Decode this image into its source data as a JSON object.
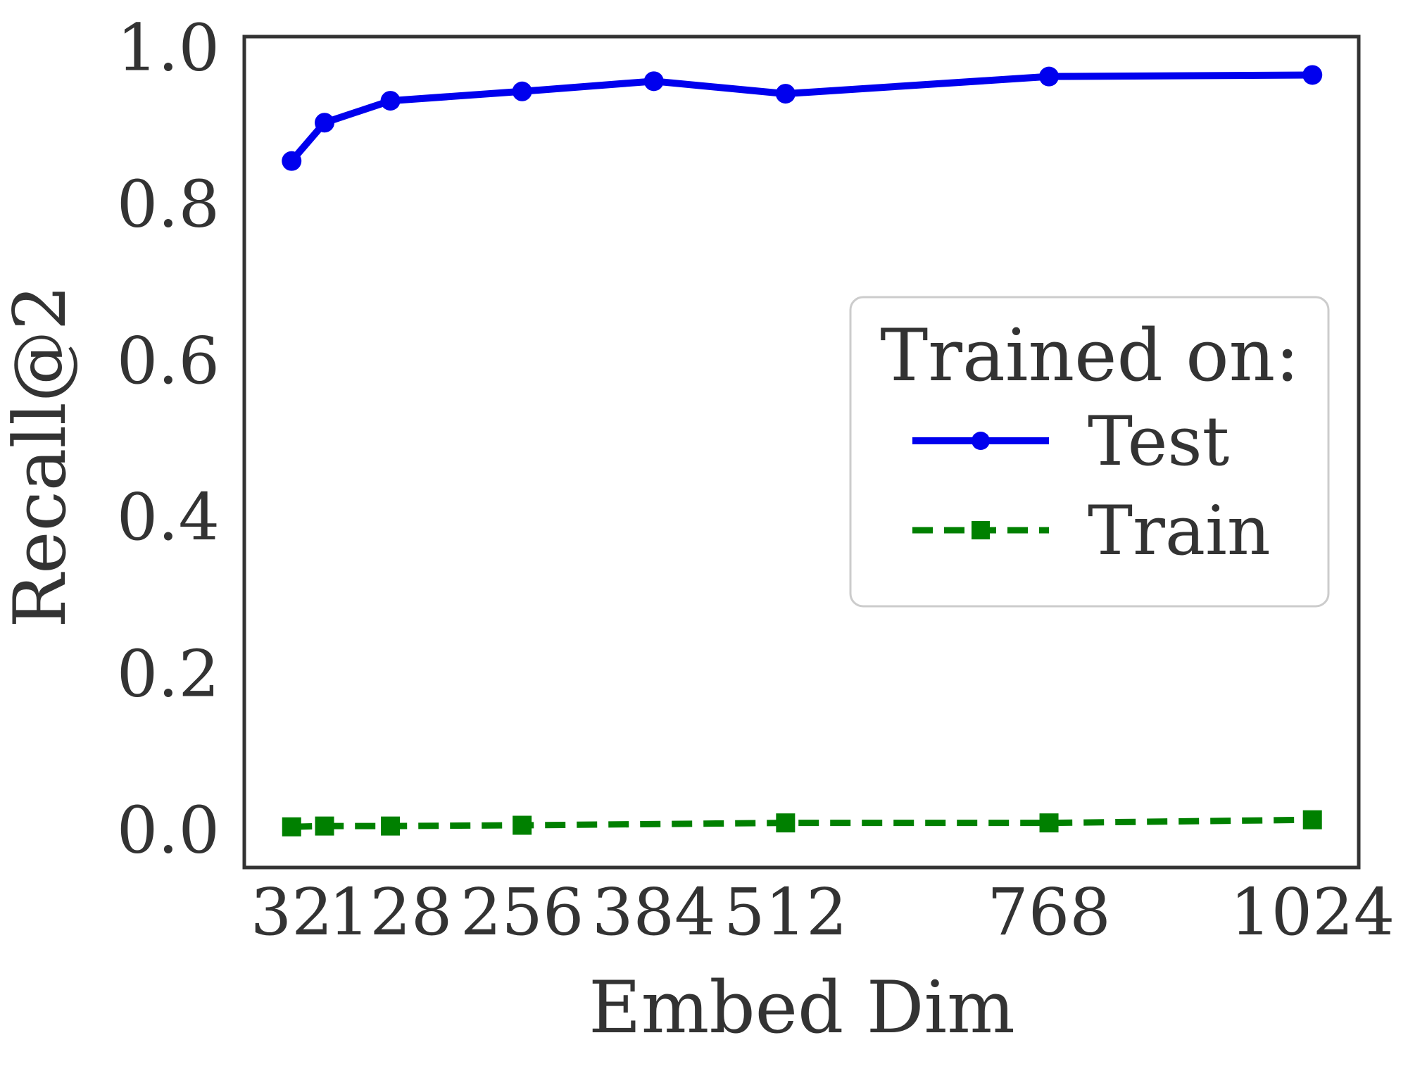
{
  "colors": {
    "background": "#ffffff",
    "text": "#333333",
    "spine": "#333333",
    "legend_border": "#cccccc",
    "test_blue": "#0000ee",
    "train_green": "#008000"
  },
  "chart_data": {
    "type": "line",
    "title": "",
    "xlabel": "Embed Dim",
    "ylabel": "Recall@2",
    "grid": false,
    "xlim": [
      -14,
      1069
    ],
    "ylim": [
      -0.049,
      1.013
    ],
    "x_ticks": [
      32,
      128,
      256,
      384,
      512,
      768,
      1024
    ],
    "x_tick_labels": [
      "32",
      "128",
      "256",
      "384",
      "512",
      "768",
      "1024"
    ],
    "y_ticks": [
      0.0,
      0.2,
      0.4,
      0.6,
      0.8,
      1.0
    ],
    "y_tick_labels": [
      "0.0",
      "0.2",
      "0.4",
      "0.6",
      "0.8",
      "1.0"
    ],
    "legend": {
      "title": "Trained on:",
      "position": "center-right"
    },
    "series": [
      {
        "name": "Test",
        "color": "#0000ee",
        "line_style": "solid",
        "marker": "circle",
        "x": [
          32,
          64,
          128,
          256,
          384,
          512,
          768,
          1024
        ],
        "y": [
          0.854,
          0.903,
          0.931,
          0.943,
          0.956,
          0.94,
          0.962,
          0.964
        ]
      },
      {
        "name": "Train",
        "color": "#008000",
        "line_style": "dashed",
        "marker": "square",
        "x": [
          32,
          64,
          128,
          256,
          512,
          768,
          1024
        ],
        "y": [
          0.003,
          0.004,
          0.004,
          0.005,
          0.008,
          0.008,
          0.012
        ]
      }
    ]
  }
}
